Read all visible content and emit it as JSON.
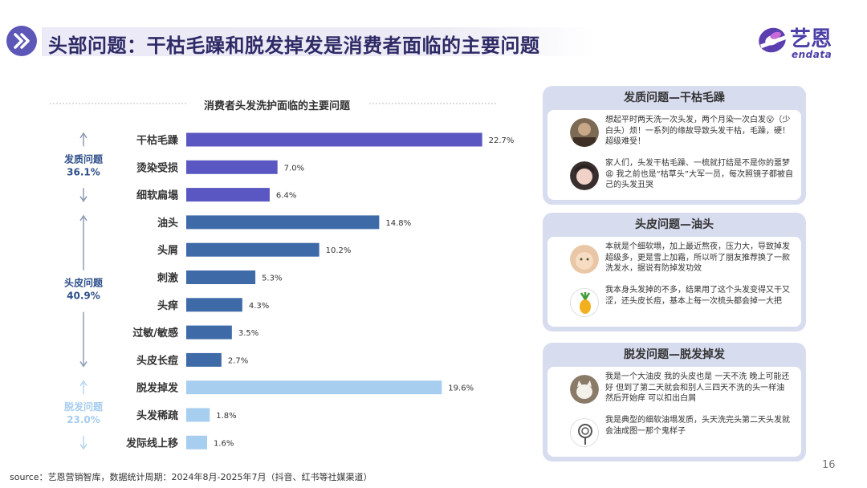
{
  "header": {
    "title": "头部问题：干枯毛躁和脱发掉发是消费者面临的主要问题",
    "logo_cn": "艺恩",
    "logo_en": "endata"
  },
  "chart_data": {
    "type": "bar",
    "orientation": "horizontal",
    "title": "消费者头发洗护面临的主要问题",
    "categories": [
      "干枯毛躁",
      "烫染受损",
      "细软扁塌",
      "油头",
      "头屑",
      "刺激",
      "头痒",
      "过敏/敏感",
      "头皮长痘",
      "脱发掉发",
      "头发稀疏",
      "发际线上移"
    ],
    "values": [
      22.7,
      7.0,
      6.4,
      14.8,
      10.2,
      5.3,
      4.3,
      3.5,
      2.7,
      19.6,
      1.8,
      1.6
    ],
    "value_labels": [
      "22.7%",
      "7.0%",
      "6.4%",
      "14.8%",
      "10.2%",
      "5.3%",
      "4.3%",
      "3.5%",
      "2.7%",
      "19.6%",
      "1.8%",
      "1.6%"
    ],
    "xlim": [
      0,
      25
    ],
    "groups": [
      {
        "name": "发质问题",
        "share": "36.1%",
        "start": 0,
        "end": 2,
        "color": "#5b57c2"
      },
      {
        "name": "头皮问题",
        "share": "40.9%",
        "start": 3,
        "end": 8,
        "color": "#3e6aa8"
      },
      {
        "name": "脱发问题",
        "share": "23.0%",
        "start": 9,
        "end": 11,
        "color": "#a7cdef"
      }
    ],
    "grid": false
  },
  "panels": [
    {
      "title": "发质问题—干枯毛躁",
      "comments": [
        {
          "avatar": "user-avatar-photo",
          "text": "想起平时两天洗一次头发，两个月染一次白发😮（少白头）烦！一系列的缘故导致头发干枯，毛躁，硬！超级难受！"
        },
        {
          "avatar": "user-avatar-girl",
          "text": "家人们，头发干枯毛躁、一梳就打结是不是你的噩梦😩 我之前也是“枯草头”大军一员，每次照镜子都被自己的头发丑哭"
        }
      ]
    },
    {
      "title": "头皮问题—油头",
      "comments": [
        {
          "avatar": "user-avatar-baby",
          "text": "本就是个细软塌，加上最近熬夜，压力大，导致掉发超级多，更是雪上加霜，所以听了朋友推荐换了一款洗发水，据说有防掉发功效"
        },
        {
          "avatar": "pineapple-avatar",
          "text": "我本身头发掉的不多，结果用了这个头发变得又干又涩，还头皮长痘，基本上每一次梳头都会掉一大把"
        }
      ]
    },
    {
      "title": "脱发问题—脱发掉发",
      "comments": [
        {
          "avatar": "cat-avatar",
          "text": "我是一个大油皮 我的头皮也是 一天不洗 晚上可能还好 但到了第二天就会和别人三四天不洗的头一样油 然后开始痒 可以扣出白屑"
        },
        {
          "avatar": "lollipop-avatar",
          "text": "我是典型的细软油塌发质，头天洗完头第二天头发就会油成图一那个鬼样子"
        }
      ]
    }
  ],
  "footer": {
    "source": "source：艺恩营销智库，数据统计周期：2024年8月-2025年7月（抖音、红书等社媒渠道）",
    "page_number": "16"
  },
  "colors": {
    "title_text": "#2e2a66",
    "brand": "#4b3fa8",
    "panel_bg": "#d8dcef"
  }
}
